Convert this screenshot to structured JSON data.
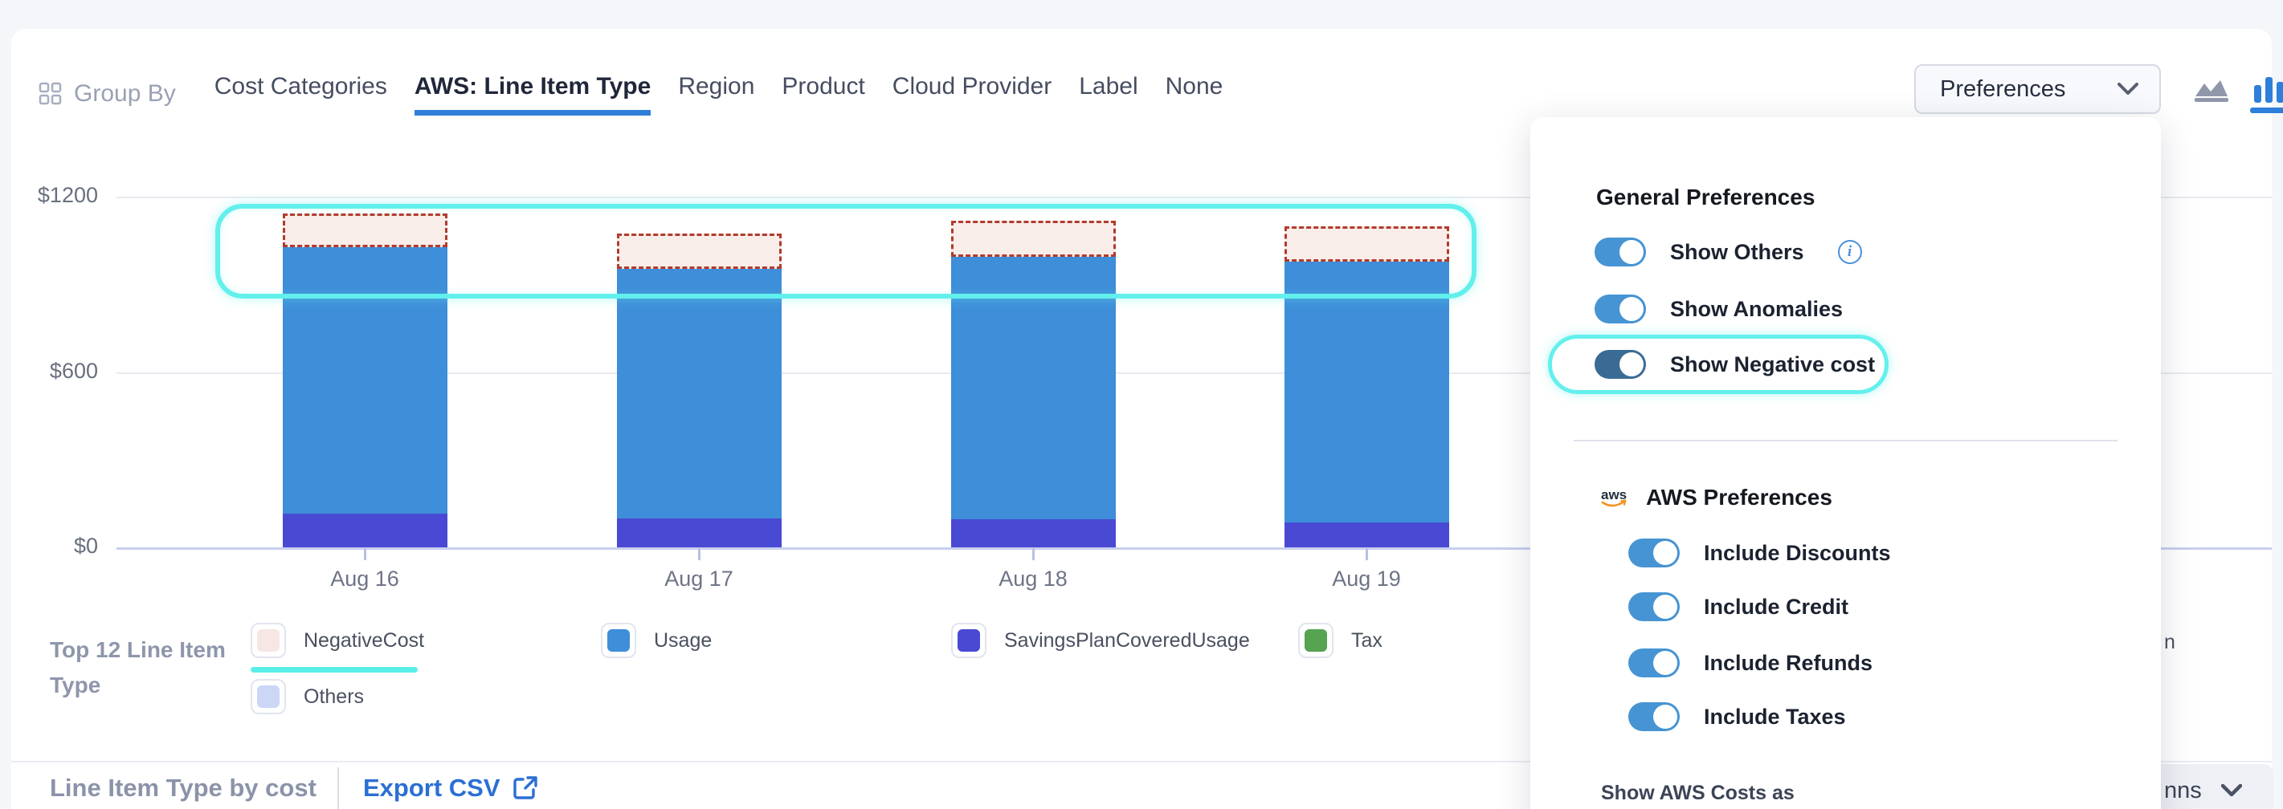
{
  "nav": {
    "group_by_label": "Group By",
    "tabs": [
      {
        "label": "Cost Categories",
        "active": false
      },
      {
        "label": "AWS: Line Item Type",
        "active": true
      },
      {
        "label": "Region",
        "active": false
      },
      {
        "label": "Product",
        "active": false
      },
      {
        "label": "Cloud Provider",
        "active": false
      },
      {
        "label": "Label",
        "active": false
      },
      {
        "label": "None",
        "active": false
      }
    ],
    "preferences_button_label": "Preferences"
  },
  "chart_data": {
    "type": "bar",
    "subtype": "stacked-with-dashed-negative-overlay",
    "categories": [
      "Aug 16",
      "Aug 17",
      "Aug 18",
      "Aug 19"
    ],
    "series": [
      {
        "name": "SavingsPlanCoveredUsage",
        "color": "#4a49d3",
        "values": [
          115,
          100,
          95,
          85
        ]
      },
      {
        "name": "Usage",
        "color": "#3e8ed9",
        "values": [
          915,
          855,
          900,
          895
        ]
      },
      {
        "name": "Tax",
        "color": "#56a352",
        "values": [
          0,
          0,
          0,
          0
        ]
      },
      {
        "name": "NegativeCost",
        "render": "dashed-box-on-top",
        "border_color": "#b23b2c",
        "fill_color": "#f9edea",
        "values": [
          115,
          120,
          125,
          120
        ]
      }
    ],
    "ylabel": "",
    "xlabel": "",
    "ylim": [
      0,
      1200
    ],
    "y_ticks": [
      "$0",
      "$600",
      "$1200"
    ],
    "grid": true,
    "legend_position": "bottom",
    "annotation": "cyan rounded highlight around the dashed NegativeCost boxes at top of bars"
  },
  "legend": {
    "title": "Top 12 Line Item Type",
    "title_line1": "Top 12 Line Item",
    "title_line2": "Type",
    "items": [
      {
        "label": "NegativeCost",
        "fill": "#f6e7e4",
        "underlined": true
      },
      {
        "label": "Usage",
        "fill": "#3e8ed9"
      },
      {
        "label": "SavingsPlanCoveredUsage",
        "fill": "#4a49d3"
      },
      {
        "label": "Tax",
        "fill": "#56a352"
      },
      {
        "label": "Others",
        "fill": "#ccd7f8"
      }
    ],
    "partial_hidden_label": "n"
  },
  "panel": {
    "general_heading": "General Preferences",
    "general_toggles": [
      {
        "label": "Show Others",
        "on": true,
        "info": true,
        "highlighted": false,
        "dark": false
      },
      {
        "label": "Show Anomalies",
        "on": true,
        "info": false,
        "highlighted": false,
        "dark": false
      },
      {
        "label": "Show Negative cost",
        "on": true,
        "info": false,
        "highlighted": true,
        "dark": true
      }
    ],
    "aws_heading": "AWS Preferences",
    "aws_logo_text": "aws",
    "aws_toggles": [
      {
        "label": "Include Discounts",
        "on": true
      },
      {
        "label": "Include Credit",
        "on": true
      },
      {
        "label": "Include Refunds",
        "on": true
      },
      {
        "label": "Include Taxes",
        "on": true
      }
    ],
    "footer_label": "Show AWS Costs as"
  },
  "footer": {
    "table_title": "Line Item Type by cost",
    "export_label": "Export CSV",
    "columns_button_visible_text": "nns"
  },
  "colors": {
    "accent_blue": "#2e7fd9",
    "toggle_on": "#4694d3",
    "toggle_on_dark": "#3a6b94",
    "highlight_cyan": "#62f0ec",
    "usage_bar": "#3e8ed9",
    "savings_plan_bar": "#4a49d3",
    "tax_swatch": "#56a352",
    "negative_fill": "#f9edea",
    "negative_border": "#b23b2c",
    "others_swatch": "#ccd7f8",
    "export_link": "#2b6fd4"
  }
}
